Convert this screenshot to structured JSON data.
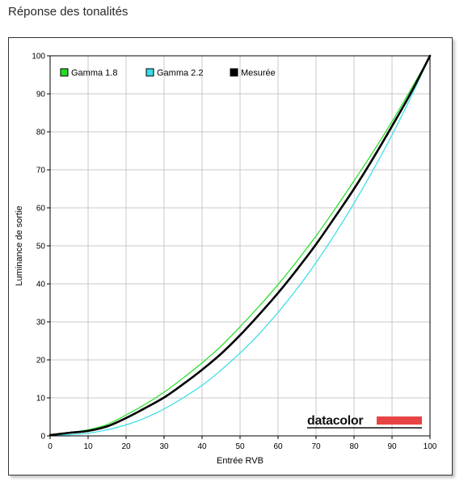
{
  "page": {
    "title": "Réponse des tonalités"
  },
  "chart_data": {
    "type": "line",
    "xlabel": "Entrée RVB",
    "ylabel": "Luminance de sortie",
    "xlim": [
      0,
      100
    ],
    "ylim": [
      0,
      100
    ],
    "xticks": [
      0,
      10,
      20,
      30,
      40,
      50,
      60,
      70,
      80,
      90,
      100
    ],
    "yticks": [
      0,
      10,
      20,
      30,
      40,
      50,
      60,
      70,
      80,
      90,
      100
    ],
    "grid": true,
    "legend_position": "top-left",
    "series": [
      {
        "name": "Gamma 1.8",
        "color": "#22dd22",
        "x": [
          0,
          5,
          10,
          15,
          20,
          25,
          30,
          35,
          40,
          45,
          50,
          55,
          60,
          65,
          70,
          75,
          80,
          85,
          90,
          95,
          100
        ],
        "y": [
          0.4,
          0.9,
          1.6,
          3.0,
          5.5,
          8.3,
          11.5,
          15.2,
          19.2,
          23.6,
          28.7,
          34.1,
          39.8,
          46.0,
          52.6,
          59.7,
          67.1,
          74.7,
          82.7,
          91.2,
          100
        ]
      },
      {
        "name": "Gamma 2.2",
        "color": "#33dde8",
        "x": [
          0,
          5,
          10,
          15,
          20,
          25,
          30,
          35,
          40,
          45,
          50,
          55,
          60,
          65,
          70,
          75,
          80,
          85,
          90,
          95,
          100
        ],
        "y": [
          0.1,
          0.3,
          0.7,
          1.6,
          2.9,
          4.7,
          7.1,
          10.0,
          13.3,
          17.3,
          21.8,
          26.8,
          32.5,
          38.7,
          45.6,
          53.1,
          61.2,
          69.9,
          79.2,
          89.2,
          100
        ]
      },
      {
        "name": "Mesurée",
        "color": "#000000",
        "x": [
          0,
          5,
          10,
          15,
          20,
          25,
          30,
          35,
          40,
          45,
          50,
          55,
          60,
          65,
          70,
          75,
          80,
          85,
          90,
          95,
          100
        ],
        "y": [
          0.2,
          0.8,
          1.3,
          2.5,
          4.7,
          7.3,
          10.1,
          13.6,
          17.4,
          21.6,
          26.5,
          31.9,
          37.6,
          43.8,
          50.4,
          57.6,
          65.0,
          73.0,
          81.5,
          90.3,
          100
        ]
      }
    ],
    "logo": {
      "text": "datacolor",
      "bar_color": "#e84444"
    }
  }
}
